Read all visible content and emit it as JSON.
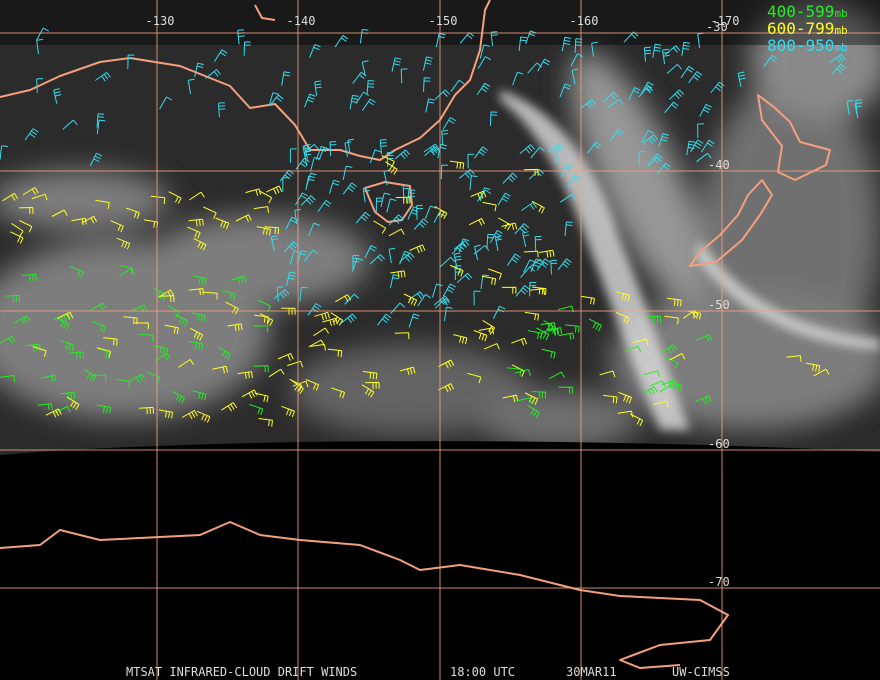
{
  "map": {
    "lon_labels": [
      "-130",
      "-140",
      "-150",
      "-160",
      "-170"
    ],
    "lat_labels": [
      "-30",
      "-40",
      "-50",
      "-60",
      "-70"
    ],
    "legend": [
      {
        "range": "400-599",
        "unit": "mb",
        "color": "#22ee22"
      },
      {
        "range": "600-799",
        "unit": "mb",
        "color": "#ffff22"
      },
      {
        "range": "800-950",
        "unit": "mb",
        "color": "#33ddee"
      }
    ],
    "footer": [
      "MTSAT INFRARED-CLOUD DRIFT WINDS",
      "18:00 UTC",
      "30MAR11",
      "UW-CIMSS"
    ]
  }
}
